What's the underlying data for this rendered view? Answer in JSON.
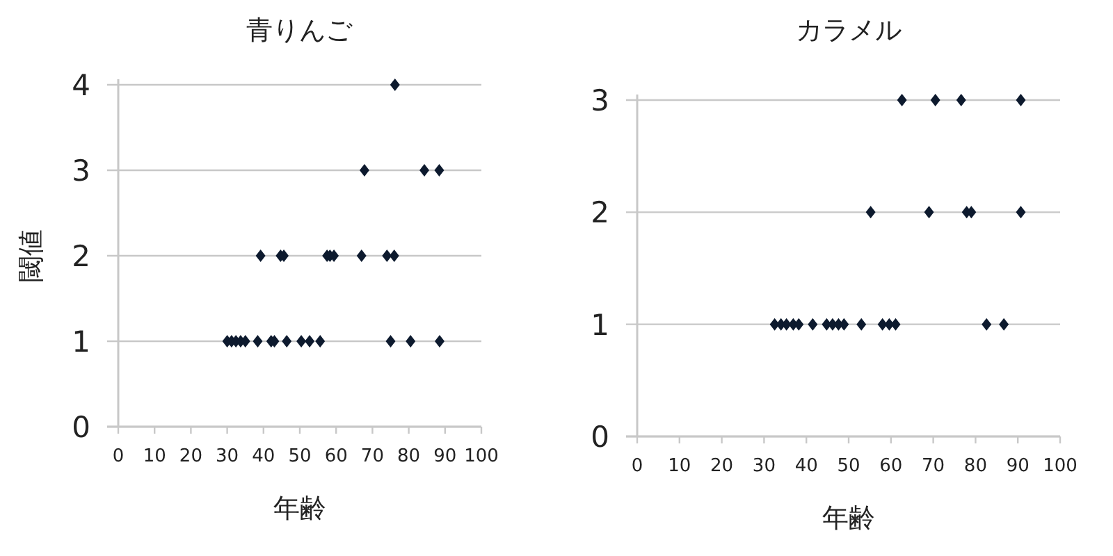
{
  "chart_data": [
    {
      "type": "scatter",
      "title": "青りんご",
      "xlabel": "年齢",
      "ylabel": "閾値",
      "grid": "y",
      "marker": "diamond",
      "series": [
        {
          "color": "#0d1a2e",
          "x": [
            30,
            31.2,
            32.4,
            33.7,
            35,
            38.4,
            42.1,
            43,
            46.4,
            50.4,
            52.7,
            55.6,
            75,
            80.5,
            88.5,
            39.2,
            44.7,
            45.6,
            57.5,
            58.3,
            59.4,
            67,
            74,
            76,
            67.8,
            84.3,
            88.4,
            76.2
          ],
          "values": [
            1,
            1,
            1,
            1,
            1,
            1,
            1,
            1,
            1,
            1,
            1,
            1,
            1,
            1,
            1,
            2,
            2,
            2,
            2,
            2,
            2,
            2,
            2,
            2,
            3,
            3,
            3,
            4
          ]
        }
      ],
      "xlim": [
        0,
        100
      ],
      "xticks": [
        0,
        10,
        20,
        30,
        40,
        50,
        60,
        70,
        80,
        90,
        100
      ],
      "ylim": [
        0,
        4
      ],
      "yticks": [
        0,
        1,
        2,
        3,
        4
      ]
    },
    {
      "type": "scatter",
      "title": "カラメル",
      "xlabel": "年齢",
      "grid": "y",
      "marker": "diamond",
      "series": [
        {
          "color": "#0d1a2e",
          "x": [
            32.5,
            34,
            35.3,
            36.9,
            38.2,
            41.5,
            44.8,
            46.2,
            47.6,
            48.9,
            53,
            58,
            59.6,
            61.1,
            82.6,
            86.7,
            55.2,
            69,
            77.9,
            79,
            90.7,
            62.6,
            70.5,
            76.6,
            90.7
          ],
          "values": [
            1,
            1,
            1,
            1,
            1,
            1,
            1,
            1,
            1,
            1,
            1,
            1,
            1,
            1,
            1,
            1,
            2,
            2,
            2,
            2,
            2,
            3,
            3,
            3,
            3
          ]
        }
      ],
      "xlim": [
        0,
        100
      ],
      "xticks": [
        0,
        10,
        20,
        30,
        40,
        50,
        60,
        70,
        80,
        90,
        100
      ],
      "ylim": [
        0,
        3
      ],
      "yticks": [
        0,
        1,
        2,
        3
      ]
    }
  ]
}
